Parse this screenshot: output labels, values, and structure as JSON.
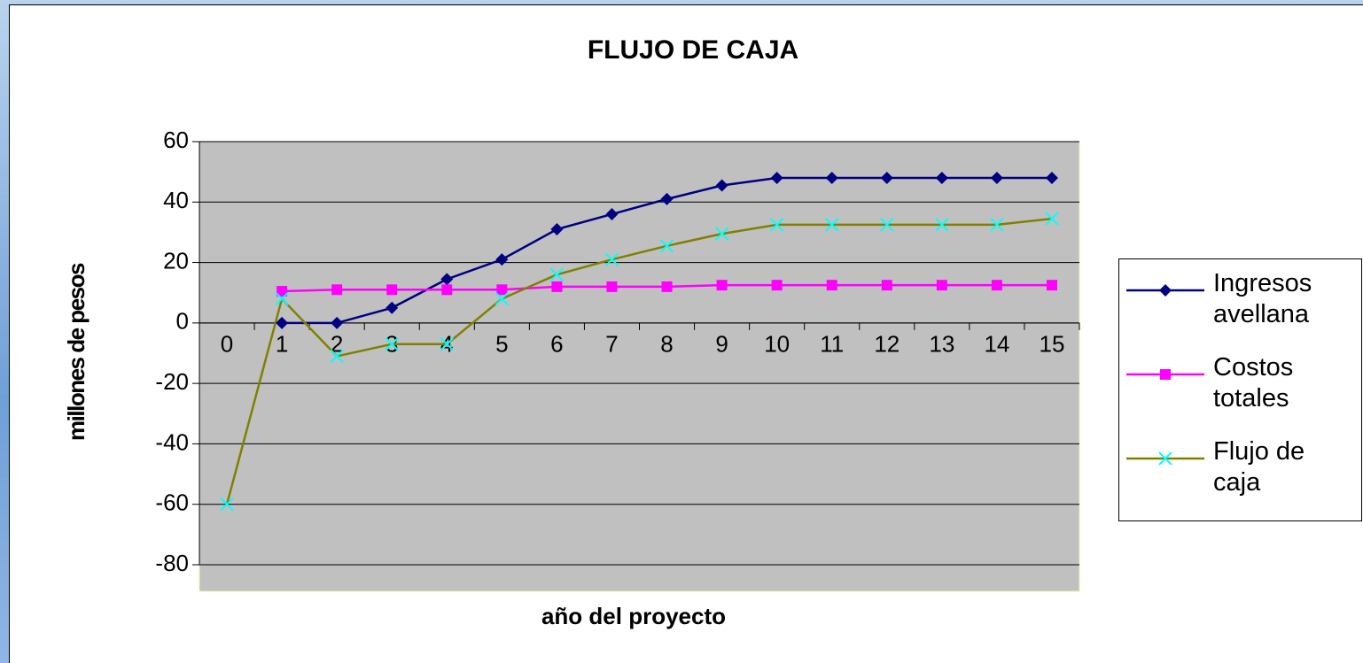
{
  "chart_data": {
    "type": "line",
    "title": "FLUJO DE CAJA",
    "x_label": "año del proyecto",
    "y_label": "millones de pesos",
    "categories": [
      "0",
      "1",
      "2",
      "3",
      "4",
      "5",
      "6",
      "7",
      "8",
      "9",
      "10",
      "11",
      "12",
      "13",
      "14",
      "15"
    ],
    "series": [
      {
        "name": "Ingresos avellana",
        "color": "#000080",
        "marker": "diamond",
        "marker_color": "#000080",
        "values": [
          null,
          0,
          0,
          5,
          14.5,
          21,
          31,
          36,
          41,
          45.5,
          48,
          48,
          48,
          48,
          48,
          48
        ]
      },
      {
        "name": "Costos totales",
        "color": "#ff00ff",
        "marker": "square",
        "marker_color": "#ff00ff",
        "values": [
          null,
          10.5,
          11,
          11,
          11,
          11,
          12,
          12,
          12,
          12.5,
          12.5,
          12.5,
          12.5,
          12.5,
          12.5,
          12.5
        ]
      },
      {
        "name": "Flujo de caja",
        "color": "#808000",
        "marker": "x",
        "marker_color": "#00ffff",
        "values": [
          -60,
          8,
          -11,
          -7,
          -7,
          8,
          16,
          21,
          25.5,
          29.5,
          32.5,
          32.5,
          32.5,
          32.5,
          32.5,
          34.5
        ]
      }
    ],
    "ylim": [
      -80,
      60
    ],
    "yticks": [
      -80,
      -60,
      -40,
      -20,
      0,
      20,
      40,
      60
    ],
    "grid": true,
    "legend": "right",
    "plot_background": "#c0c0c0"
  }
}
